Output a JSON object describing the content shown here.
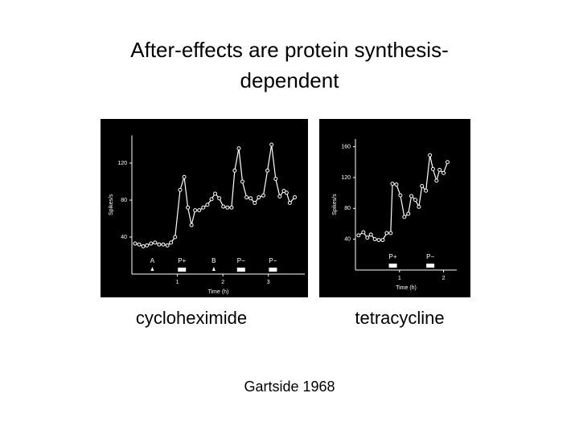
{
  "title_lines": [
    "After-effects are protein synthesis-",
    "dependent"
  ],
  "chart_data": [
    {
      "type": "line",
      "caption": "cycloheximide",
      "ylabel": "Spikes/s",
      "xlabel": "Time (h)",
      "xlim": [
        0,
        3.8
      ],
      "ylim": [
        0,
        150
      ],
      "xticks": [
        1,
        2,
        3
      ],
      "yticks": [
        40,
        80,
        120
      ],
      "series": [
        {
          "color": "#ffffff",
          "x": [
            0.07,
            0.16,
            0.25,
            0.33,
            0.42,
            0.51,
            0.6,
            0.69,
            0.78,
            0.86,
            0.95,
            1.06,
            1.15,
            1.23,
            1.31,
            1.39,
            1.48,
            1.57,
            1.66,
            1.75,
            1.83,
            1.92,
            2.01,
            2.1,
            2.19,
            2.26,
            2.35,
            2.43,
            2.52,
            2.61,
            2.7,
            2.79,
            2.89,
            2.98,
            3.07,
            3.16,
            3.25,
            3.34,
            3.4,
            3.47,
            3.58
          ],
          "values": [
            33,
            32,
            30,
            31,
            33,
            34,
            32,
            32,
            31,
            34,
            40,
            91,
            105,
            72,
            53,
            69,
            69,
            72,
            75,
            81,
            87,
            82,
            73,
            72,
            72,
            112,
            136,
            100,
            83,
            82,
            77,
            83,
            85,
            112,
            140,
            103,
            84,
            90,
            88,
            77,
            83
          ]
        }
      ],
      "annotations": [
        {
          "text": "A",
          "x": 0.45,
          "marker": "arrow"
        },
        {
          "text": "P+",
          "x": 1.1,
          "marker": "bar"
        },
        {
          "text": "B",
          "x": 1.8,
          "marker": "arrow"
        },
        {
          "text": "P−",
          "x": 2.4,
          "marker": "bar"
        },
        {
          "text": "P−",
          "x": 3.1,
          "marker": "bar"
        }
      ]
    },
    {
      "type": "line",
      "caption": "tetracycline",
      "ylabel": "Spikes/s",
      "xlabel": "Time (h)",
      "xlim": [
        0,
        2.3
      ],
      "ylim": [
        0,
        170
      ],
      "xticks": [
        1,
        2
      ],
      "yticks": [
        40,
        80,
        120,
        160
      ],
      "series": [
        {
          "color": "#ffffff",
          "x": [
            0.07,
            0.18,
            0.27,
            0.35,
            0.44,
            0.53,
            0.62,
            0.71,
            0.8,
            0.84,
            0.93,
            1.02,
            1.11,
            1.2,
            1.27,
            1.36,
            1.44,
            1.51,
            1.6,
            1.69,
            1.76,
            1.84,
            1.91,
            2.0,
            2.09
          ],
          "values": [
            45,
            49,
            42,
            46,
            40,
            39,
            39,
            48,
            48,
            112,
            111,
            97,
            69,
            73,
            96,
            91,
            82,
            109,
            103,
            149,
            131,
            116,
            130,
            126,
            140
          ]
        }
      ],
      "annotations": [
        {
          "text": "P+",
          "x": 0.85,
          "marker": "bar"
        },
        {
          "text": "P−",
          "x": 1.7,
          "marker": "bar"
        }
      ]
    }
  ],
  "citation": "Gartside 1968"
}
